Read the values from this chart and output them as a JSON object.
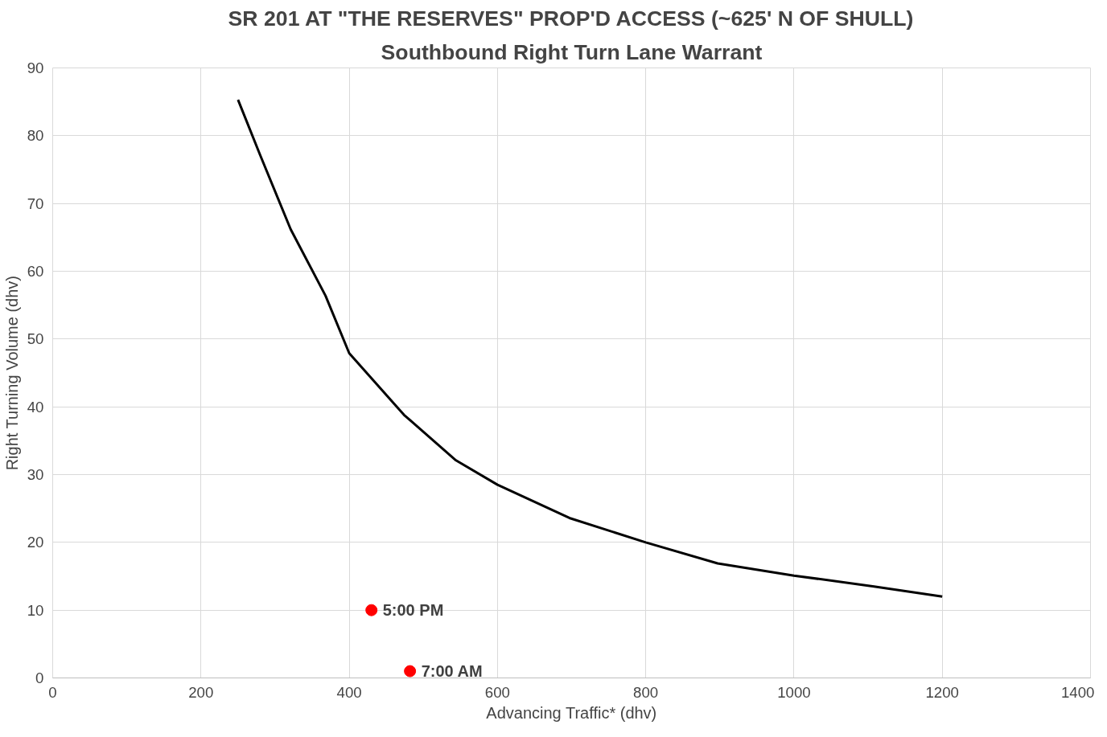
{
  "chart_data": {
    "type": "line",
    "title": "SR 201 AT \"THE RESERVES\" PROP'D ACCESS (~625' N OF SHULL)",
    "subtitle": "Southbound Right Turn Lane Warrant",
    "xlabel": "Advancing Traffic* (dhv)",
    "ylabel": "Right Turning Volume (dhv)",
    "series": [
      {
        "color": "#000000",
        "x": [
          250,
          280,
          321,
          368,
          400,
          474,
          544,
          600,
          697,
          800,
          897,
          1000,
          1108,
          1200
        ],
        "values": [
          85.3,
          77.1,
          66.2,
          56.4,
          47.9,
          38.8,
          32.1,
          28.5,
          23.6,
          20,
          16.9,
          15.1,
          13.5,
          12.0
        ]
      },
      {
        "type": "scatter",
        "color": "#ff0000",
        "marker": "circle",
        "x": [
          430,
          482
        ],
        "values": [
          10,
          1
        ]
      }
    ],
    "annotations": [
      {
        "text": "5:00 PM",
        "x": 430,
        "y": 10
      },
      {
        "text": "7:00 AM",
        "x": 482,
        "y": 1
      }
    ],
    "xlim": [
      0,
      1400
    ],
    "ylim": [
      0,
      90
    ],
    "xticks": [
      0,
      200,
      400,
      600,
      800,
      1000,
      1200,
      1400
    ],
    "yticks": [
      0,
      10,
      20,
      30,
      40,
      50,
      60,
      70,
      80,
      90
    ],
    "grid": true
  }
}
